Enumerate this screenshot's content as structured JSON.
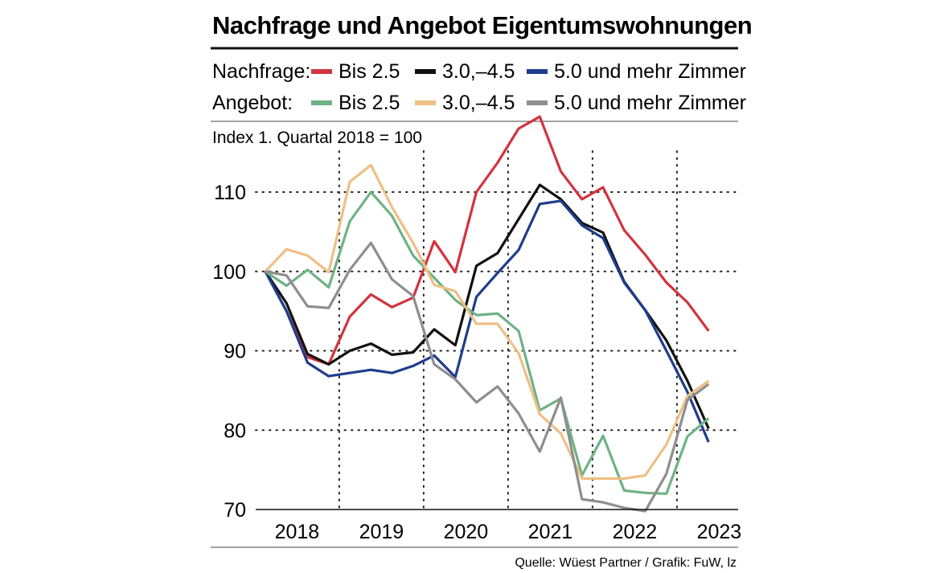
{
  "chart_data": {
    "type": "line",
    "title": "Nachfrage und Angebot Eigentumswohnungen",
    "subtitle": "Index 1. Quartal 2018 = 100",
    "source": "Quelle: Wüest Partner / Grafik: FuW, lz",
    "legend_groups": [
      {
        "label": "Nachfrage:",
        "entries": [
          "Bis 2.5",
          "3.0,–4.5",
          "5.0 und mehr Zimmer"
        ]
      },
      {
        "label": "Angebot:",
        "entries": [
          "Bis 2.5",
          "3.0,–4.5",
          "5.0 und mehr Zimmer"
        ]
      }
    ],
    "xlabel": "",
    "ylabel": "",
    "x_ticks": [
      "2018",
      "2019",
      "2020",
      "2021",
      "2022",
      "2023"
    ],
    "y_ticks": [
      70,
      80,
      90,
      100,
      110
    ],
    "ylim": [
      70,
      118
    ],
    "x_start": 2018.0,
    "x_step": 0.25,
    "xlim": [
      2017.9,
      2023.6
    ],
    "series": [
      {
        "name": "Nachfrage Bis 2.5",
        "color": "#d2343f",
        "values": [
          100,
          95,
          89.2,
          88.3,
          94.3,
          97.1,
          95.5,
          96.7,
          103.8,
          99.9,
          110,
          113.7,
          118,
          119.5,
          112.6,
          109.1,
          110.6,
          105.2,
          102.1,
          98.6,
          96.1,
          92.5
        ]
      },
      {
        "name": "Nachfrage 3.0,–4.5",
        "color": "#111111",
        "values": [
          100,
          96,
          89.6,
          88.3,
          90,
          90.9,
          89.5,
          89.8,
          92.7,
          90.7,
          100.7,
          102.3,
          106.6,
          110.9,
          109.1,
          106.1,
          104.9,
          98.7,
          95.1,
          91.3,
          86.2,
          80.2
        ]
      },
      {
        "name": "Nachfrage 5.0 und mehr Zimmer",
        "color": "#1f3d8c",
        "values": [
          100,
          95,
          88.5,
          86.8,
          87.2,
          87.6,
          87.2,
          88.1,
          89.4,
          86.7,
          96.8,
          99.8,
          102.7,
          108.5,
          108.9,
          105.8,
          104.2,
          98.6,
          95.1,
          90,
          84.8,
          78.5
        ]
      },
      {
        "name": "Angebot Bis 2.5",
        "color": "#6fb285",
        "values": [
          100,
          98.2,
          100.2,
          98,
          106.3,
          110,
          107,
          102,
          99.2,
          96.4,
          94.5,
          94.7,
          92.5,
          82.5,
          84,
          74.3,
          79.3,
          72.4,
          72.1,
          72,
          79.2,
          81.5
        ]
      },
      {
        "name": "Angebot 3.0,–4.5",
        "color": "#eebf86",
        "values": [
          100,
          102.8,
          102,
          99.9,
          111.3,
          113.4,
          108.1,
          103.6,
          98.3,
          97.5,
          93.4,
          93.4,
          89.7,
          82,
          79.6,
          73.9,
          73.9,
          73.9,
          74.3,
          78.2,
          84.3,
          86.2
        ]
      },
      {
        "name": "Angebot 5.0 und mehr Zimmer",
        "color": "#8e8e8e",
        "values": [
          100,
          99.5,
          95.6,
          95.4,
          100.2,
          103.6,
          99,
          96.9,
          88.3,
          86.4,
          83.5,
          85.5,
          82.1,
          77.3,
          84.1,
          71.3,
          70.9,
          70.2,
          69.8,
          74.5,
          83.8,
          85.8
        ]
      }
    ]
  }
}
